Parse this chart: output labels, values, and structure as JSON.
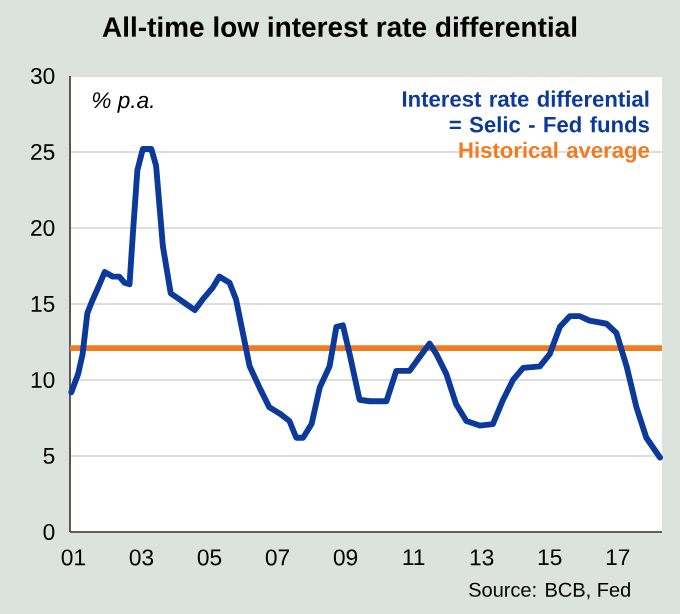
{
  "chart_data": {
    "type": "line",
    "title": "All-time low interest rate differential",
    "ylabel": "% p.a.",
    "annotations": [
      "Source: BCB, Fed"
    ],
    "x": [
      2000.94,
      2001.14,
      2001.27,
      2001.41,
      2001.57,
      2001.73,
      2001.92,
      2002.16,
      2002.35,
      2002.5,
      2002.65,
      2002.75,
      2002.88,
      2003.04,
      2003.29,
      2003.43,
      2003.63,
      2003.86,
      2004.12,
      2004.31,
      2004.57,
      2004.8,
      2005.1,
      2005.29,
      2005.59,
      2005.78,
      2005.98,
      2006.18,
      2006.47,
      2006.76,
      2007.06,
      2007.35,
      2007.55,
      2007.75,
      2008.0,
      2008.24,
      2008.53,
      2008.73,
      2008.92,
      2009.12,
      2009.41,
      2009.71,
      2010.2,
      2010.49,
      2010.88,
      2011.17,
      2011.47,
      2011.67,
      2011.96,
      2012.25,
      2012.55,
      2012.94,
      2013.33,
      2013.63,
      2013.92,
      2014.22,
      2014.71,
      2015.0,
      2015.3,
      2015.59,
      2015.88,
      2016.18,
      2016.67,
      2016.96,
      2017.26,
      2017.55,
      2017.84,
      2018.24
    ],
    "series": [
      {
        "name": "Interest rate differential = Selic - Fed funds",
        "color": "#0b3a9a",
        "values": [
          9.2,
          10.4,
          11.7,
          14.4,
          15.3,
          16.1,
          17.1,
          16.8,
          16.8,
          16.4,
          16.3,
          19.7,
          23.8,
          25.2,
          25.2,
          24.1,
          18.8,
          15.7,
          15.3,
          15.0,
          14.6,
          15.3,
          16.1,
          16.8,
          16.4,
          15.3,
          13.1,
          10.9,
          9.5,
          8.2,
          7.8,
          7.3,
          6.2,
          6.2,
          7.1,
          9.5,
          10.9,
          13.5,
          13.6,
          11.7,
          8.7,
          8.6,
          8.6,
          10.6,
          10.6,
          11.5,
          12.4,
          11.7,
          10.4,
          8.4,
          7.3,
          7.0,
          7.1,
          8.7,
          10.0,
          10.8,
          10.9,
          11.7,
          13.5,
          14.2,
          14.2,
          13.9,
          13.7,
          13.1,
          10.9,
          8.2,
          6.2,
          4.9
        ]
      }
    ],
    "ref_lines": [
      {
        "axis": "y",
        "value": 12.1,
        "label": "Historical average",
        "color": "#f47a1f"
      }
    ],
    "xlim": [
      2000.9,
      2018.3
    ],
    "xticks": [
      {
        "value": 2001,
        "label": "01"
      },
      {
        "value": 2003,
        "label": "03"
      },
      {
        "value": 2005,
        "label": "05"
      },
      {
        "value": 2007,
        "label": "07"
      },
      {
        "value": 2009,
        "label": "09"
      },
      {
        "value": 2011,
        "label": "11"
      },
      {
        "value": 2013,
        "label": "13"
      },
      {
        "value": 2015,
        "label": "15"
      },
      {
        "value": 2017,
        "label": "17"
      }
    ],
    "ylim": [
      0,
      30
    ],
    "yticks": [
      0,
      5,
      10,
      15,
      20,
      25,
      30
    ],
    "grid": "y",
    "legend": "top right",
    "marker": "none",
    "line_style": "solid"
  }
}
